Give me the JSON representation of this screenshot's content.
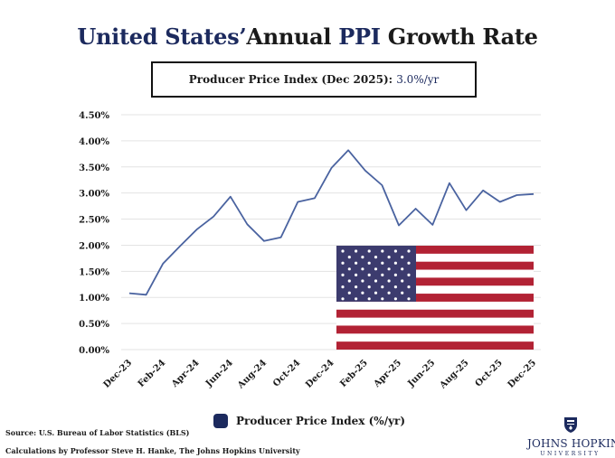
{
  "header": {
    "title_part1": "United States’",
    "title_part2": "Annual ",
    "title_part3": "PPI",
    "title_part4": " Growth Rate",
    "info_label": "Producer Price Index (Dec 2025): ",
    "info_value": "3.0%/yr"
  },
  "colors": {
    "line": "#4a63a0",
    "navy": "#1c2a5e",
    "flag_red": "#b22234",
    "flag_blue": "#3c3b6e",
    "grid": "#e3e3e3"
  },
  "chart_data": {
    "type": "line",
    "title": "United States’ Annual PPI Growth Rate",
    "xlabel": "",
    "ylabel": "",
    "ylim": [
      0,
      4.5
    ],
    "ytick_values": [
      0,
      0.5,
      1.0,
      1.5,
      2.0,
      2.5,
      3.0,
      3.5,
      4.0,
      4.5
    ],
    "ytick_labels": [
      "0.00%",
      "0.50%",
      "1.00%",
      "1.50%",
      "2.00%",
      "2.50%",
      "3.00%",
      "3.50%",
      "4.00%",
      "4.50%"
    ],
    "xtick_labels": [
      "Dec-23",
      "Feb-24",
      "Apr-24",
      "Jun-24",
      "Aug-24",
      "Oct-24",
      "Dec-24",
      "Feb-25",
      "Apr-25",
      "Jun-25",
      "Aug-25",
      "Oct-25",
      "Dec-25"
    ],
    "xtick_index": [
      0,
      2,
      4,
      6,
      8,
      10,
      12,
      14,
      16,
      18,
      20,
      22,
      24
    ],
    "grid": true,
    "legend_position": "bottom",
    "series": [
      {
        "name": "Producer Price Index (%/yr)",
        "months": [
          "Dec-23",
          "Jan-24",
          "Feb-24",
          "Mar-24",
          "Apr-24",
          "May-24",
          "Jun-24",
          "Jul-24",
          "Aug-24",
          "Sep-24",
          "Oct-24",
          "Nov-24",
          "Dec-24",
          "Jan-25",
          "Feb-25",
          "Mar-25",
          "Apr-25",
          "May-25",
          "Jun-25",
          "Jul-25",
          "Aug-25",
          "Sep-25",
          "Oct-25",
          "Nov-25",
          "Dec-25"
        ],
        "values": [
          1.08,
          1.05,
          1.65,
          1.98,
          2.3,
          2.55,
          2.93,
          2.4,
          2.08,
          2.15,
          2.83,
          2.9,
          3.48,
          3.82,
          3.43,
          3.15,
          2.38,
          2.7,
          2.39,
          3.19,
          2.67,
          3.05,
          2.83,
          2.96,
          2.98
        ]
      }
    ]
  },
  "legend": {
    "label": "Producer Price Index (%/yr)"
  },
  "footer": {
    "source": "Source: U.S. Bureau of Labor Statistics (BLS)",
    "calculations": "Calculations by Professor Steve H. Hanke, The Johns Hopkins University",
    "logo_name": "JOHNS HOPKINS",
    "logo_sub": "UNIVERSITY"
  }
}
